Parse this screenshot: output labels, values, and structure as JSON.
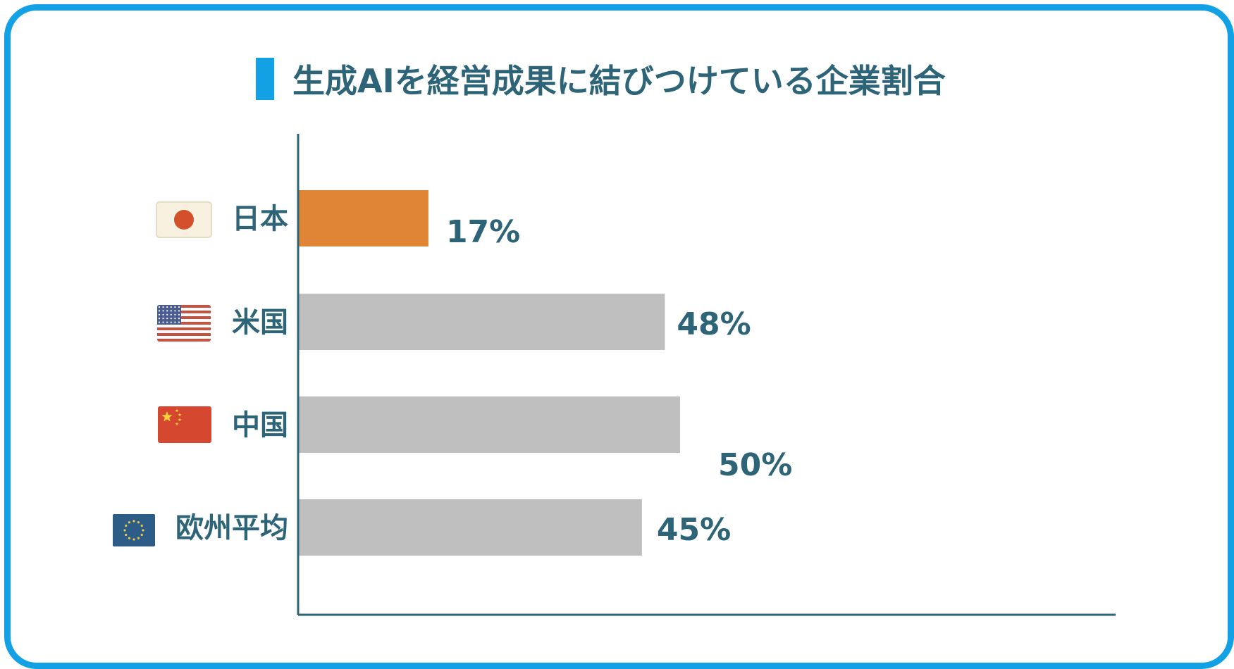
{
  "chart_data": {
    "type": "bar",
    "orientation": "horizontal",
    "title": "生成AIを経営成果に結びつけている企業割合",
    "categories": [
      "日本",
      "米国",
      "中国",
      "欧州平均"
    ],
    "values": [
      17,
      48,
      50,
      45
    ],
    "value_labels": [
      "17%",
      "48%",
      "50%",
      "45%"
    ],
    "flags": [
      "japan-flag-icon",
      "usa-flag-icon",
      "china-flag-icon",
      "eu-flag-icon"
    ],
    "unit": "%",
    "xlim": [
      0,
      100
    ],
    "grid": false,
    "legend": "none",
    "colors": {
      "highlight": "#e08435",
      "default": "#bfbfbf",
      "axis": "#2d6478",
      "text": "#2d6478",
      "frame": "#12a1e4"
    },
    "highlight_index": 0
  }
}
